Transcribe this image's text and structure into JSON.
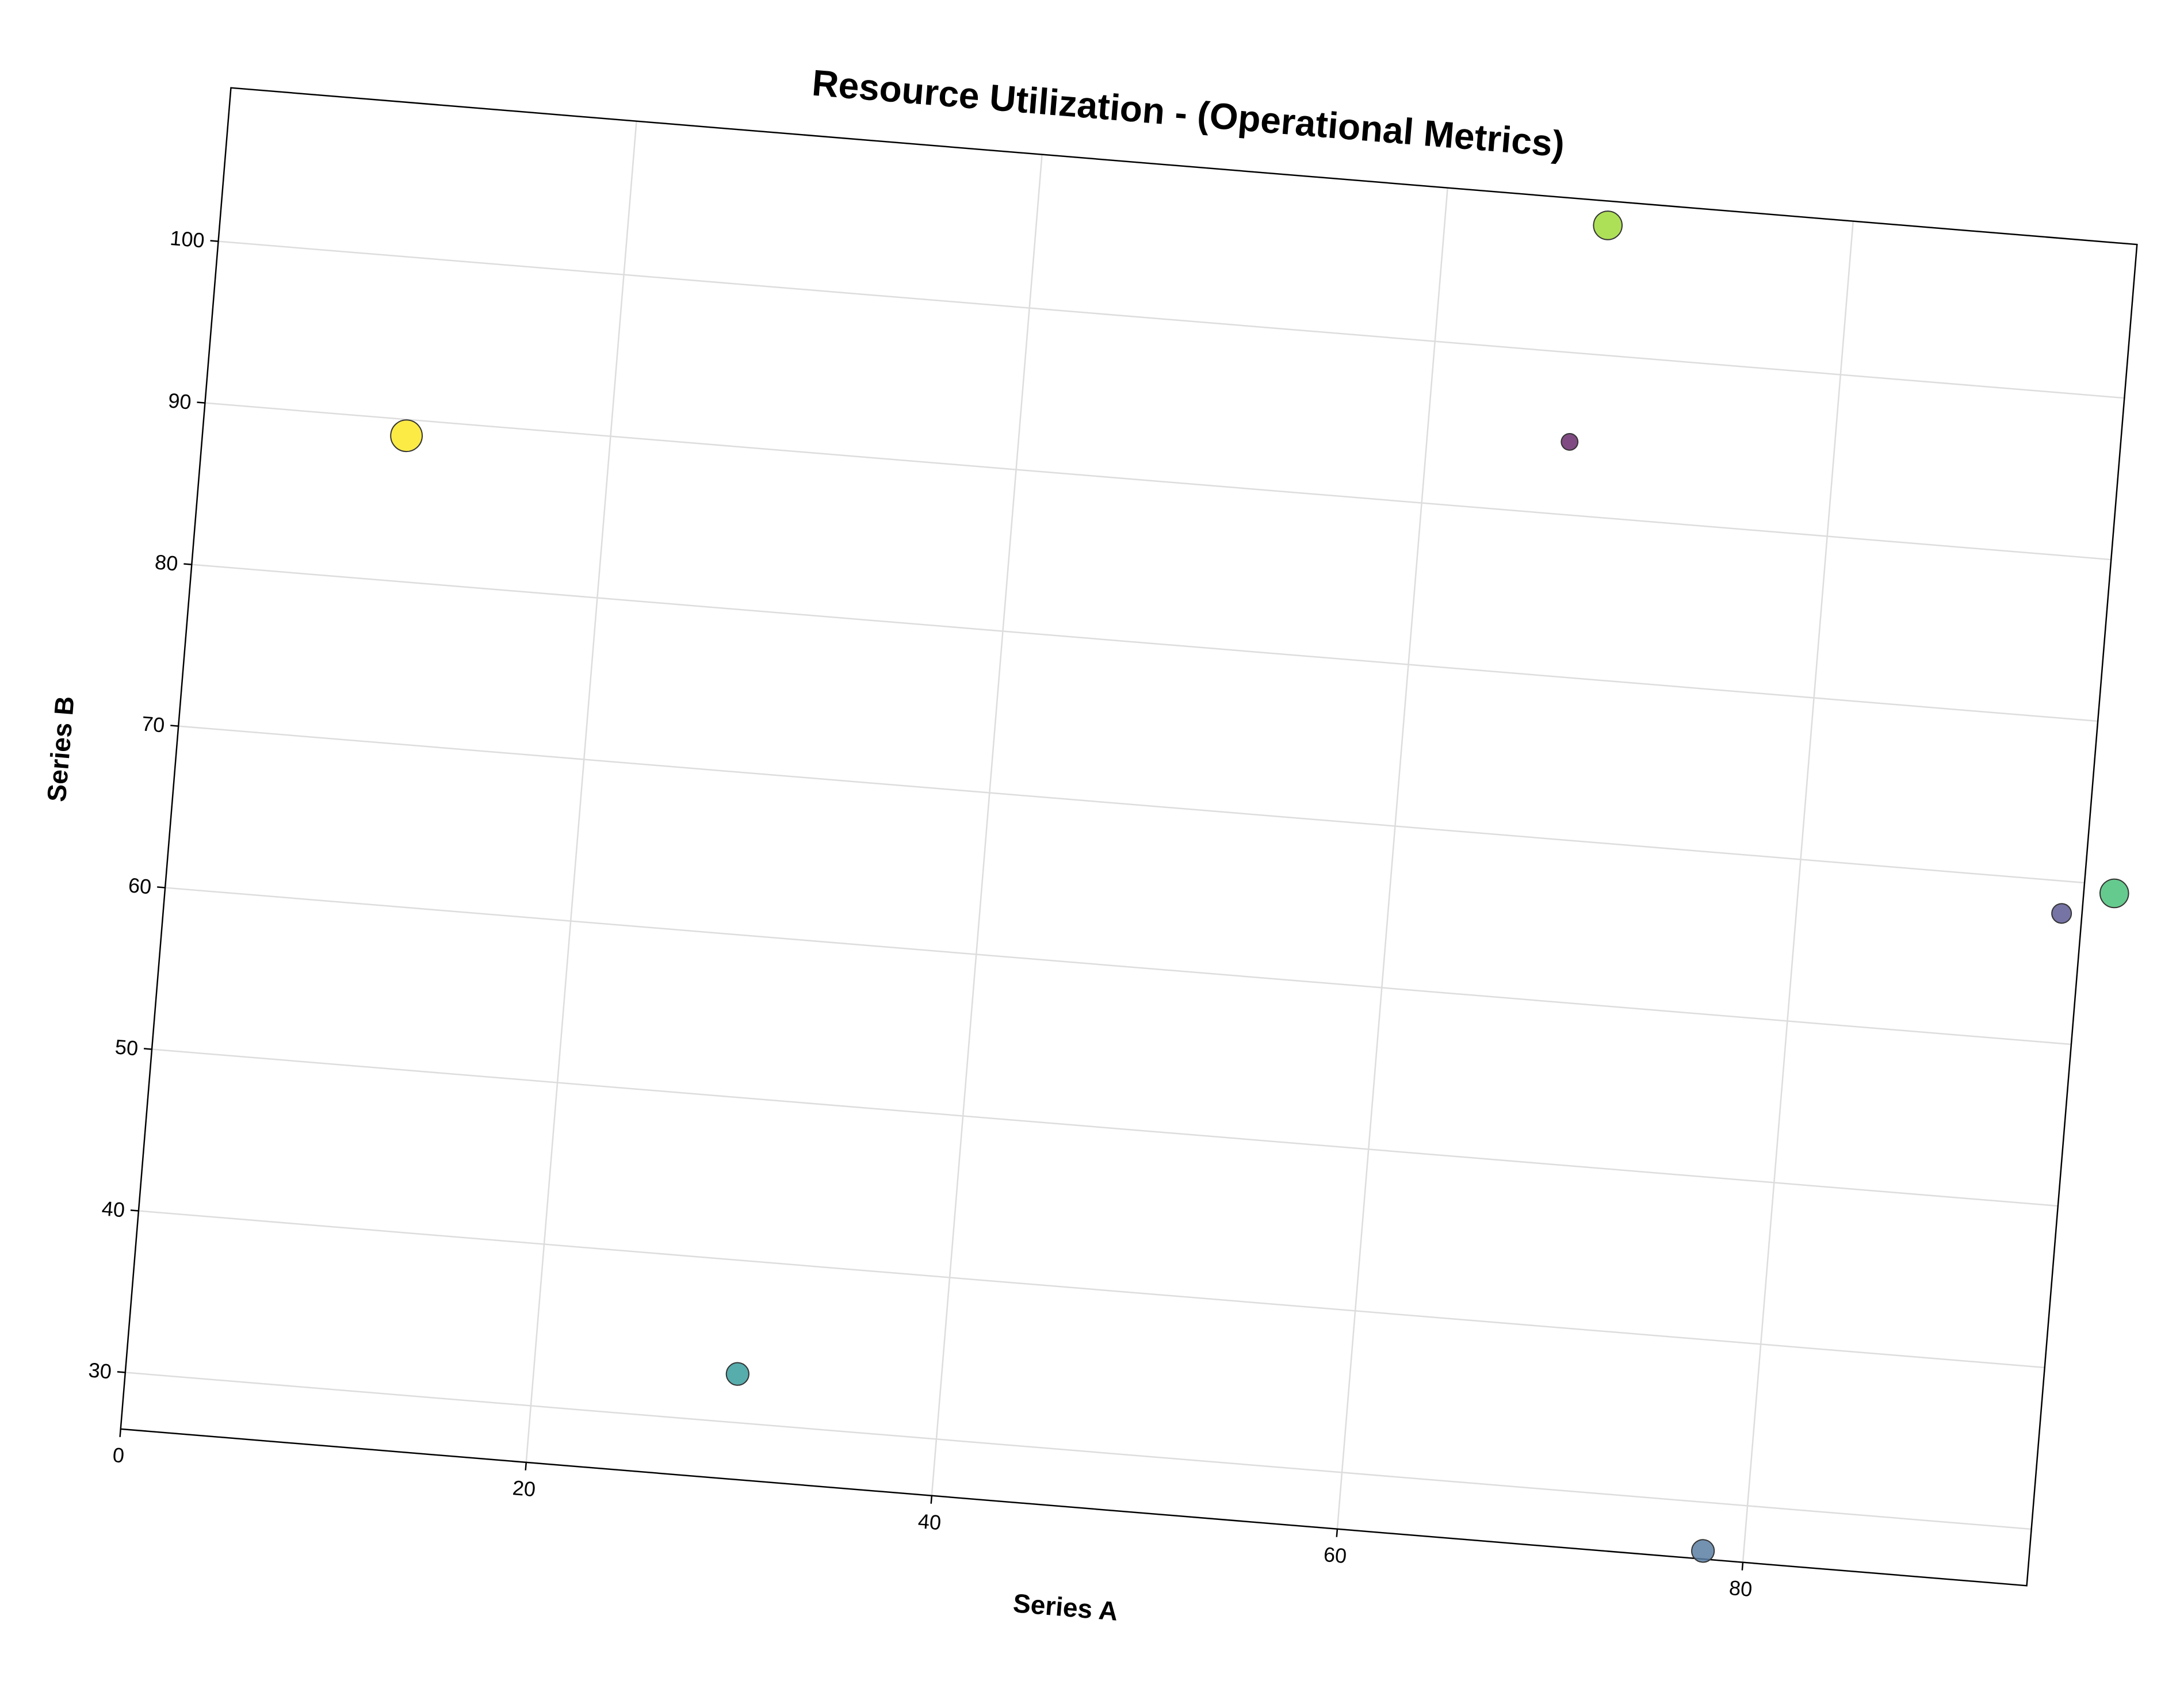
{
  "chart_data": {
    "type": "scatter",
    "title": "Resource Utilization - (Operational Metrics)",
    "xlabel": "Series A",
    "ylabel": "Series B",
    "xlim": [
      0,
      94
    ],
    "ylim": [
      26.5,
      109.5
    ],
    "xticks": [
      0,
      20,
      40,
      60,
      80
    ],
    "yticks": [
      30,
      40,
      50,
      60,
      70,
      80,
      90,
      100
    ],
    "grid": true,
    "rotation_deg": 4.7,
    "points": [
      {
        "x": 10.0,
        "y": 89.0,
        "size": 9,
        "color": "#fde725"
      },
      {
        "x": 68.0,
        "y": 108.0,
        "size": 8,
        "color": "#a0da39"
      },
      {
        "x": 67.0,
        "y": 94.5,
        "size": 4,
        "color": "#6a2c6c"
      },
      {
        "x": 93.0,
        "y": 68.0,
        "size": 5,
        "color": "#5e5a95"
      },
      {
        "x": 95.5,
        "y": 69.5,
        "size": 8,
        "color": "#4ac17a"
      },
      {
        "x": 30.0,
        "y": 33.0,
        "size": 6,
        "color": "#3a9e9e"
      },
      {
        "x": 78.0,
        "y": 27.0,
        "size": 6,
        "color": "#5b7fa3"
      }
    ]
  }
}
